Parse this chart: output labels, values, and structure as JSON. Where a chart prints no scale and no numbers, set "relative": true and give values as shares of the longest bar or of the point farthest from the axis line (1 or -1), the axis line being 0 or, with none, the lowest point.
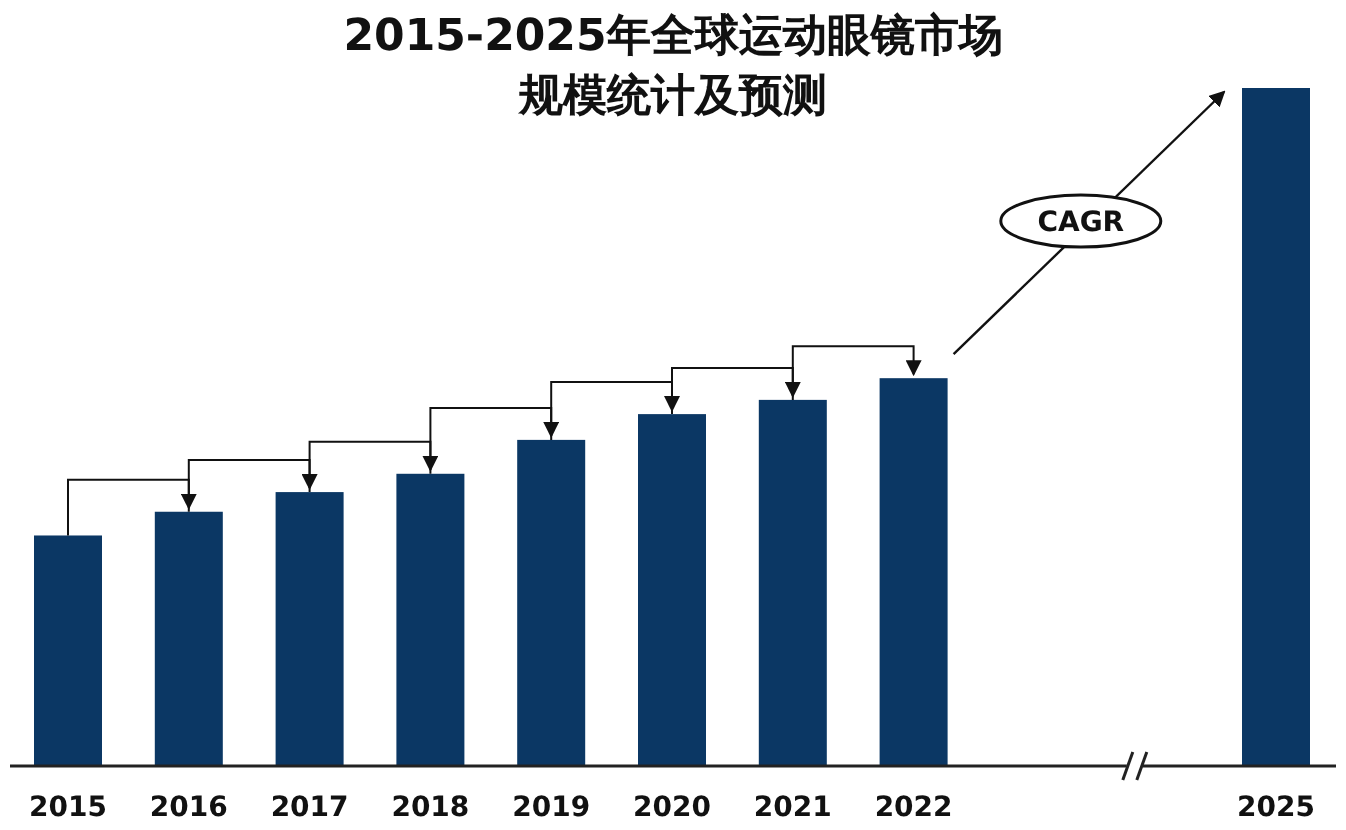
{
  "chart_data": {
    "type": "bar",
    "title": "2015-2025年全球运动眼镜市场规模统计及预测",
    "categories": [
      "2015",
      "2016",
      "2017",
      "2018",
      "2019",
      "2020",
      "2021",
      "2022",
      null,
      null,
      "2025"
    ],
    "values": [
      0.34,
      0.375,
      0.404,
      0.431,
      0.481,
      0.519,
      0.54,
      0.572,
      null,
      null,
      1
    ],
    "color": "#0b3764",
    "relative": true,
    "annotations": [
      "CAGR"
    ]
  }
}
